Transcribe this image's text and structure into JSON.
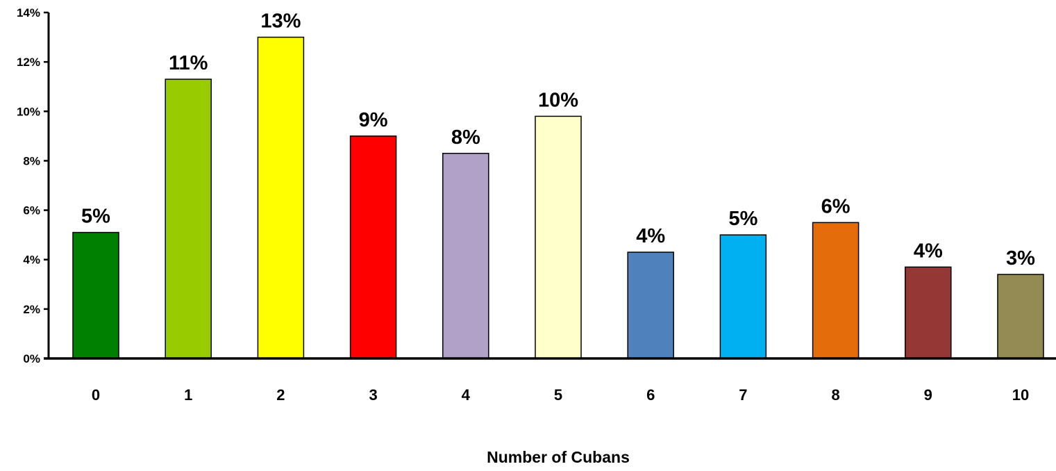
{
  "chart_data": {
    "type": "bar",
    "title": "",
    "xlabel": "Number of Cubans",
    "ylabel": "",
    "categories": [
      "0",
      "1",
      "2",
      "3",
      "4",
      "5",
      "6",
      "7",
      "8",
      "9",
      "10"
    ],
    "values": [
      5.1,
      11.3,
      13.0,
      9.0,
      8.3,
      9.8,
      4.3,
      5.0,
      5.5,
      3.7,
      3.4
    ],
    "data_labels": [
      "5%",
      "11%",
      "13%",
      "9%",
      "8%",
      "10%",
      "4%",
      "5%",
      "6%",
      "4%",
      "3%"
    ],
    "colors": [
      "#008000",
      "#99cc00",
      "#ffff00",
      "#ff0000",
      "#b1a0c7",
      "#ffffcc",
      "#4f81bd",
      "#00b0f0",
      "#e46c0a",
      "#953735",
      "#948a54"
    ],
    "ylim": [
      0,
      14
    ],
    "y_ticks": [
      "0%",
      "2%",
      "4%",
      "6%",
      "8%",
      "10%",
      "12%",
      "14%"
    ],
    "y_tick_values": [
      0,
      2,
      4,
      6,
      8,
      10,
      12,
      14
    ],
    "value_unit": "percent",
    "grid": false,
    "legend": "none"
  }
}
